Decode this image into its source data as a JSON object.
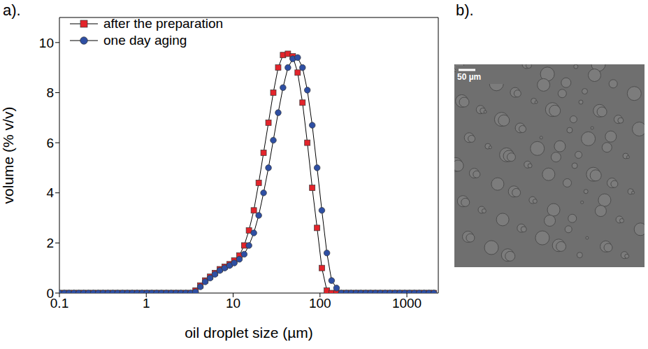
{
  "chart_data": {
    "type": "line",
    "panel_label": "a).",
    "x_label": "oil droplet size (µm)",
    "y_label": "volume (% v/v)",
    "log": "x",
    "legend": "upper left",
    "xlim": [
      0.1,
      2300
    ],
    "xticks": [
      0.1,
      1,
      10,
      100,
      1000
    ],
    "ylim": [
      0,
      11
    ],
    "yticks": [
      0,
      2,
      4,
      6,
      8,
      10
    ],
    "x": [
      0.1,
      0.114,
      0.129,
      0.147,
      0.167,
      0.19,
      0.216,
      0.246,
      0.28,
      0.318,
      0.362,
      0.412,
      0.468,
      0.533,
      0.606,
      0.689,
      0.784,
      0.892,
      1.015,
      1.155,
      1.314,
      1.494,
      1.7,
      1.934,
      2.2,
      2.5,
      2.85,
      3.24,
      3.69,
      4.19,
      4.77,
      5.43,
      6.17,
      7.02,
      7.99,
      9.09,
      10.3,
      11.8,
      13.4,
      15.2,
      17.3,
      19.7,
      22.4,
      25.5,
      29,
      33,
      37.5,
      42.7,
      48.6,
      55.3,
      62.9,
      71.5,
      81.4,
      92.6,
      105,
      120,
      136,
      155,
      176,
      201,
      228,
      260,
      295,
      336,
      382,
      435,
      495,
      563,
      640,
      729,
      829,
      943,
      1073,
      1220,
      1388,
      1580,
      1797,
      2044
    ],
    "series": [
      {
        "name": "after the preparation",
        "color": "#e3242b",
        "marker": "square",
        "values": [
          0,
          0,
          0,
          0,
          0,
          0,
          0,
          0,
          0,
          0,
          0,
          0,
          0,
          0,
          0,
          0,
          0,
          0,
          0,
          0,
          0,
          0,
          0,
          0,
          0,
          0,
          0,
          0,
          0.1,
          0.3,
          0.5,
          0.65,
          0.8,
          0.95,
          1.05,
          1.15,
          1.3,
          1.5,
          1.9,
          2.5,
          3.3,
          4.4,
          5.6,
          6.8,
          8.0,
          9.0,
          9.5,
          9.55,
          9.45,
          8.8,
          7.6,
          6.0,
          4.2,
          2.6,
          1.0,
          0.1,
          0,
          0,
          0,
          0,
          0,
          0,
          0,
          0,
          0,
          0,
          0,
          0,
          0,
          0,
          0,
          0,
          0,
          0,
          0,
          0,
          0,
          0
        ]
      },
      {
        "name": "one day aging",
        "color": "#2e4fa3",
        "marker": "circle",
        "values": [
          0,
          0,
          0,
          0,
          0,
          0,
          0,
          0,
          0,
          0,
          0,
          0,
          0,
          0,
          0,
          0,
          0,
          0,
          0,
          0,
          0,
          0,
          0,
          0,
          0,
          0,
          0,
          0,
          0.05,
          0.25,
          0.45,
          0.6,
          0.75,
          0.9,
          1.0,
          1.1,
          1.2,
          1.35,
          1.55,
          1.9,
          2.4,
          3.1,
          4.0,
          5.0,
          6.1,
          7.2,
          8.2,
          9.0,
          9.35,
          9.4,
          9.0,
          8.1,
          6.7,
          5.0,
          3.3,
          1.6,
          0.5,
          0.2,
          0,
          0,
          0,
          0,
          0,
          0,
          0,
          0,
          0,
          0,
          0,
          0,
          0,
          0,
          0,
          0,
          0,
          0,
          0,
          0
        ]
      }
    ]
  },
  "image": {
    "panel_label": "b).",
    "scale_bar": "50 µm"
  }
}
